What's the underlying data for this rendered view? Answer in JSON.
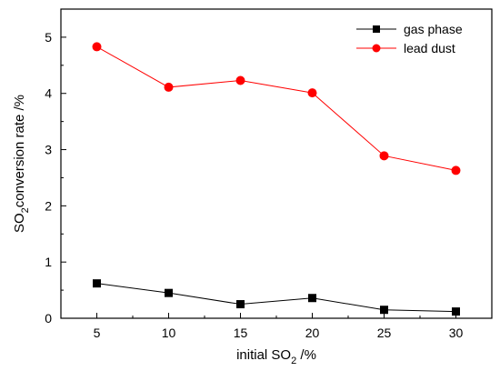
{
  "chart_data": {
    "type": "line",
    "title": "",
    "x": [
      5,
      10,
      15,
      20,
      25,
      30
    ],
    "xlim": [
      2.5,
      32.5
    ],
    "ylim": [
      0,
      5.5
    ],
    "xticks": [
      5,
      10,
      15,
      20,
      25,
      30
    ],
    "yticks": [
      0,
      1,
      2,
      3,
      4,
      5
    ],
    "xlabel": {
      "main": "initial SO",
      "sub": "2",
      "unit": " /%"
    },
    "ylabel": {
      "main": "SO",
      "sub": "2",
      "rest": "conversion rate /%"
    },
    "grid": false,
    "legend_position": "top-right",
    "series": [
      {
        "name": "gas phase",
        "color": "#000000",
        "marker": "square",
        "values": [
          0.62,
          0.45,
          0.25,
          0.36,
          0.15,
          0.12
        ]
      },
      {
        "name": "lead dust",
        "color": "#ff0000",
        "marker": "circle",
        "values": [
          4.83,
          4.11,
          4.23,
          4.01,
          2.89,
          2.63
        ]
      }
    ]
  }
}
